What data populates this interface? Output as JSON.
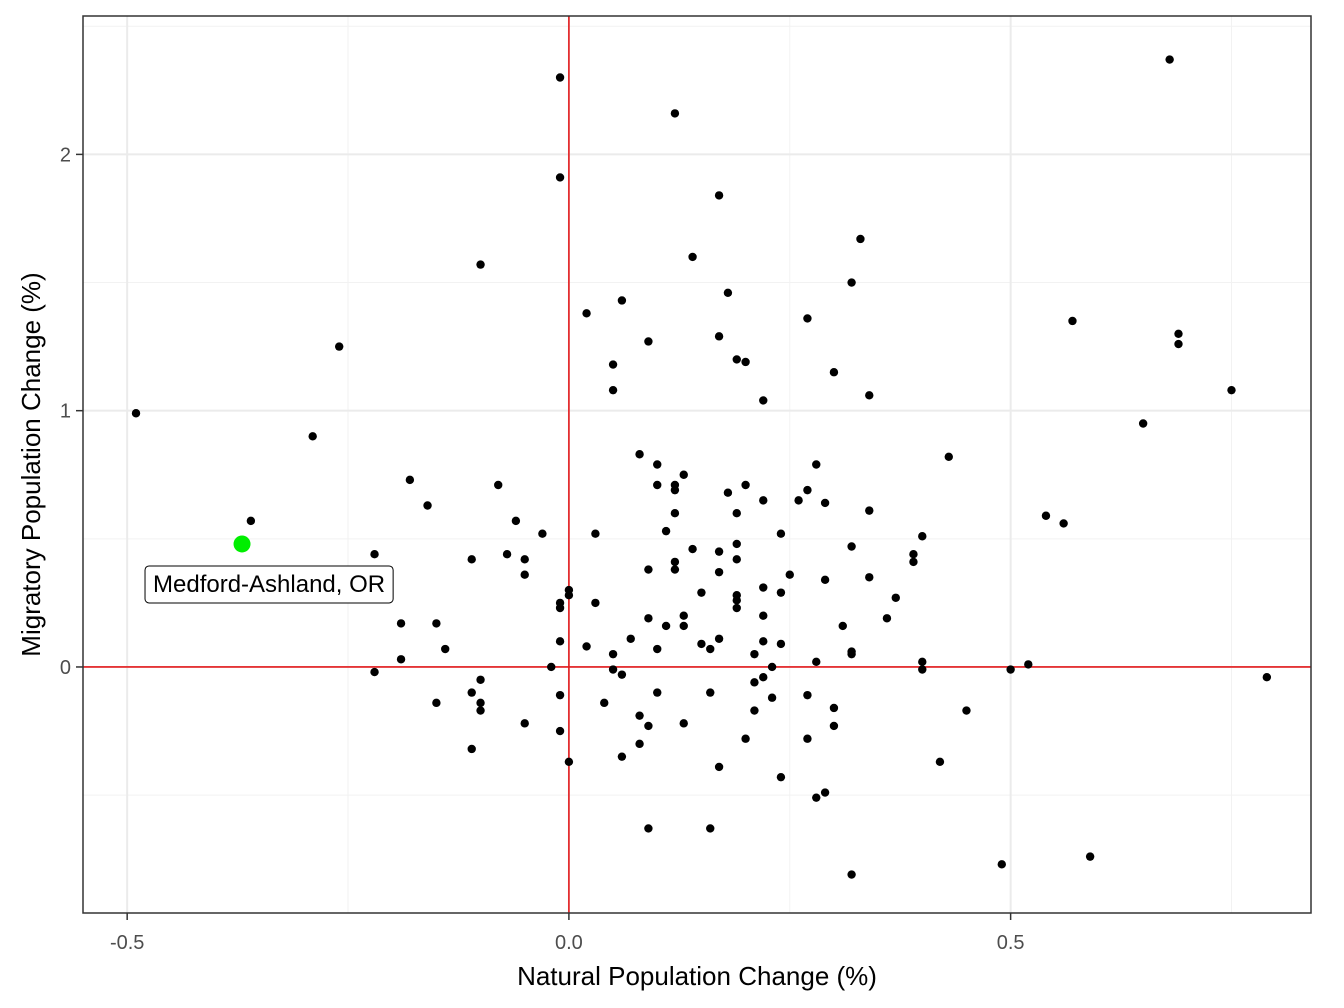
{
  "chart_data": {
    "type": "scatter",
    "title": "",
    "xlabel": "Natural Population Change (%)",
    "ylabel": "Migratory Population Change (%)",
    "xlim": [
      -0.55,
      0.84
    ],
    "ylim": [
      -0.96,
      2.54
    ],
    "x_ticks": [
      -0.5,
      0.0,
      0.5
    ],
    "x_tick_labels": [
      "-0.5",
      "0.0",
      "0.5"
    ],
    "y_ticks": [
      0,
      1,
      2
    ],
    "y_tick_labels": [
      "0",
      "1",
      "2"
    ],
    "grid": true,
    "reference_lines": {
      "x": 0,
      "y": 0,
      "color": "#e41a1c"
    },
    "point_color": "#000000",
    "highlight": {
      "x": -0.37,
      "y": 0.48,
      "label": "Medford-Ashland, OR",
      "color": "#00ee00"
    },
    "points": [
      [
        -0.49,
        0.99
      ],
      [
        -0.36,
        0.57
      ],
      [
        -0.29,
        0.9
      ],
      [
        -0.26,
        1.25
      ],
      [
        -0.22,
        0.44
      ],
      [
        -0.22,
        -0.02
      ],
      [
        -0.19,
        0.17
      ],
      [
        -0.19,
        0.03
      ],
      [
        -0.18,
        0.73
      ],
      [
        -0.16,
        0.63
      ],
      [
        -0.15,
        0.17
      ],
      [
        -0.15,
        -0.14
      ],
      [
        -0.14,
        0.07
      ],
      [
        -0.11,
        0.42
      ],
      [
        -0.11,
        -0.1
      ],
      [
        -0.11,
        -0.32
      ],
      [
        -0.1,
        1.57
      ],
      [
        -0.1,
        -0.05
      ],
      [
        -0.1,
        -0.14
      ],
      [
        -0.1,
        -0.17
      ],
      [
        -0.08,
        0.71
      ],
      [
        -0.07,
        0.44
      ],
      [
        -0.06,
        0.57
      ],
      [
        -0.05,
        0.42
      ],
      [
        -0.05,
        0.36
      ],
      [
        -0.05,
        -0.22
      ],
      [
        -0.03,
        0.52
      ],
      [
        -0.02,
        0.0
      ],
      [
        -0.01,
        2.3
      ],
      [
        -0.01,
        1.91
      ],
      [
        -0.01,
        0.25
      ],
      [
        -0.01,
        0.23
      ],
      [
        -0.01,
        0.1
      ],
      [
        -0.01,
        -0.11
      ],
      [
        -0.01,
        -0.25
      ],
      [
        0.0,
        0.3
      ],
      [
        0.0,
        0.28
      ],
      [
        0.0,
        -0.37
      ],
      [
        0.02,
        1.38
      ],
      [
        0.02,
        0.08
      ],
      [
        0.03,
        0.52
      ],
      [
        0.03,
        0.25
      ],
      [
        0.04,
        -0.14
      ],
      [
        0.05,
        1.18
      ],
      [
        0.05,
        1.08
      ],
      [
        0.05,
        0.05
      ],
      [
        0.05,
        -0.01
      ],
      [
        0.06,
        1.43
      ],
      [
        0.06,
        -0.03
      ],
      [
        0.06,
        -0.35
      ],
      [
        0.07,
        0.11
      ],
      [
        0.08,
        0.83
      ],
      [
        0.08,
        -0.19
      ],
      [
        0.08,
        -0.3
      ],
      [
        0.09,
        1.27
      ],
      [
        0.09,
        0.38
      ],
      [
        0.09,
        0.19
      ],
      [
        0.09,
        -0.23
      ],
      [
        0.09,
        -0.63
      ],
      [
        0.1,
        0.79
      ],
      [
        0.1,
        0.71
      ],
      [
        0.1,
        0.07
      ],
      [
        0.1,
        -0.1
      ],
      [
        0.11,
        0.53
      ],
      [
        0.11,
        0.16
      ],
      [
        0.12,
        2.16
      ],
      [
        0.12,
        0.71
      ],
      [
        0.12,
        0.69
      ],
      [
        0.12,
        0.6
      ],
      [
        0.12,
        0.41
      ],
      [
        0.12,
        0.38
      ],
      [
        0.13,
        0.75
      ],
      [
        0.13,
        0.2
      ],
      [
        0.13,
        0.16
      ],
      [
        0.13,
        -0.22
      ],
      [
        0.14,
        1.6
      ],
      [
        0.14,
        0.46
      ],
      [
        0.15,
        0.29
      ],
      [
        0.15,
        0.09
      ],
      [
        0.16,
        0.07
      ],
      [
        0.16,
        -0.1
      ],
      [
        0.16,
        -0.63
      ],
      [
        0.17,
        1.84
      ],
      [
        0.17,
        1.29
      ],
      [
        0.17,
        0.45
      ],
      [
        0.17,
        0.37
      ],
      [
        0.17,
        0.11
      ],
      [
        0.17,
        -0.39
      ],
      [
        0.18,
        1.46
      ],
      [
        0.18,
        0.68
      ],
      [
        0.19,
        1.2
      ],
      [
        0.19,
        0.6
      ],
      [
        0.19,
        0.48
      ],
      [
        0.19,
        0.42
      ],
      [
        0.19,
        0.28
      ],
      [
        0.19,
        0.26
      ],
      [
        0.19,
        0.23
      ],
      [
        0.2,
        1.19
      ],
      [
        0.2,
        0.71
      ],
      [
        0.2,
        -0.28
      ],
      [
        0.21,
        0.05
      ],
      [
        0.21,
        -0.06
      ],
      [
        0.21,
        -0.17
      ],
      [
        0.22,
        1.04
      ],
      [
        0.22,
        0.65
      ],
      [
        0.22,
        0.31
      ],
      [
        0.22,
        0.2
      ],
      [
        0.22,
        0.1
      ],
      [
        0.22,
        -0.04
      ],
      [
        0.23,
        0.0
      ],
      [
        0.23,
        -0.12
      ],
      [
        0.24,
        0.52
      ],
      [
        0.24,
        0.29
      ],
      [
        0.24,
        0.09
      ],
      [
        0.24,
        -0.43
      ],
      [
        0.25,
        0.36
      ],
      [
        0.26,
        0.65
      ],
      [
        0.27,
        1.36
      ],
      [
        0.27,
        0.69
      ],
      [
        0.27,
        -0.11
      ],
      [
        0.27,
        -0.28
      ],
      [
        0.28,
        0.79
      ],
      [
        0.28,
        0.02
      ],
      [
        0.28,
        -0.51
      ],
      [
        0.29,
        0.64
      ],
      [
        0.29,
        0.34
      ],
      [
        0.29,
        -0.49
      ],
      [
        0.3,
        1.15
      ],
      [
        0.3,
        -0.16
      ],
      [
        0.3,
        -0.23
      ],
      [
        0.31,
        0.16
      ],
      [
        0.32,
        1.5
      ],
      [
        0.32,
        0.47
      ],
      [
        0.32,
        0.06
      ],
      [
        0.32,
        0.05
      ],
      [
        0.32,
        -0.81
      ],
      [
        0.33,
        1.67
      ],
      [
        0.34,
        1.06
      ],
      [
        0.34,
        0.61
      ],
      [
        0.34,
        0.35
      ],
      [
        0.36,
        0.19
      ],
      [
        0.37,
        0.27
      ],
      [
        0.39,
        0.44
      ],
      [
        0.39,
        0.41
      ],
      [
        0.4,
        0.51
      ],
      [
        0.4,
        0.02
      ],
      [
        0.4,
        -0.01
      ],
      [
        0.42,
        -0.37
      ],
      [
        0.43,
        0.82
      ],
      [
        0.45,
        -0.17
      ],
      [
        0.5,
        -0.01
      ],
      [
        0.52,
        0.01
      ],
      [
        0.54,
        0.59
      ],
      [
        0.56,
        0.56
      ],
      [
        0.57,
        1.35
      ],
      [
        0.59,
        -0.74
      ],
      [
        0.49,
        -0.77
      ],
      [
        0.65,
        0.95
      ],
      [
        0.68,
        2.37
      ],
      [
        0.69,
        1.3
      ],
      [
        0.69,
        1.26
      ],
      [
        0.75,
        1.08
      ],
      [
        0.79,
        -0.04
      ]
    ]
  }
}
